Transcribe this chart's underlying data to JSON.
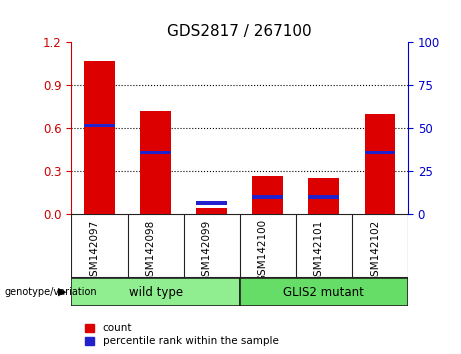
{
  "title": "GDS2817 / 267100",
  "samples": [
    "GSM142097",
    "GSM142098",
    "GSM142099",
    "GSM142100",
    "GSM142101",
    "GSM142102"
  ],
  "count_values": [
    1.07,
    0.72,
    0.04,
    0.27,
    0.25,
    0.7
  ],
  "percentile_values": [
    0.62,
    0.43,
    0.08,
    0.12,
    0.12,
    0.43
  ],
  "ylim_left": [
    0,
    1.2
  ],
  "ylim_right": [
    0,
    100
  ],
  "yticks_left": [
    0,
    0.3,
    0.6,
    0.9,
    1.2
  ],
  "yticks_right": [
    0,
    25,
    50,
    75,
    100
  ],
  "bar_width": 0.55,
  "count_color": "#dd0000",
  "percentile_color": "#2222cc",
  "ax_bg_color": "#ffffff",
  "tick_label_area_color": "#cccccc",
  "wild_type_color": "#90ee90",
  "mutant_color": "#66dd66",
  "wild_type_label": "wild type",
  "mutant_label": "GLIS2 mutant",
  "genotype_label": "genotype/variation",
  "legend_count_label": "count",
  "legend_percentile_label": "percentile rank within the sample",
  "title_fontsize": 11,
  "axis_color_left": "#cc0000",
  "axis_color_right": "#0000cc",
  "grid_color": "#000000",
  "blue_bar_thickness": 0.025,
  "border_color": "#222222"
}
